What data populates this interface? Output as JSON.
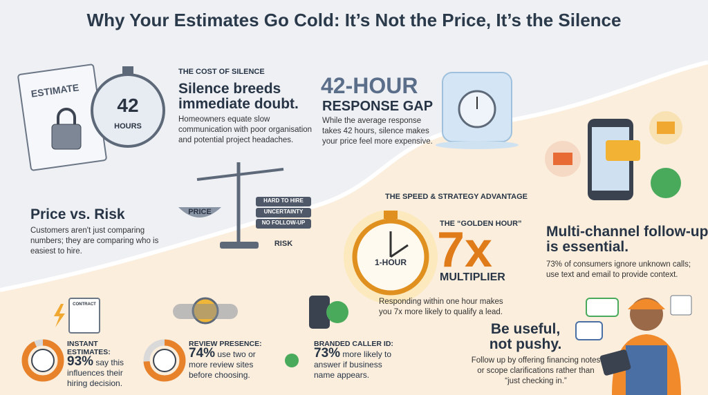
{
  "title": "Why Your Estimates Go Cold: It’s Not the Price, It’s the Silence",
  "illustrations": {
    "estimate_doc": "ESTIMATE",
    "timer_number": "42",
    "timer_unit": "HOURS",
    "scale_left": "PRICE",
    "risk_items": [
      "HARD TO HIRE",
      "UNCERTAINTY",
      "NO FOLLOW-UP"
    ],
    "scale_right": "RISK",
    "clock": "1-HOUR",
    "contract": "CONTRACT"
  },
  "cost_of_silence": {
    "kicker": "THE COST OF SILENCE",
    "headline": "Silence breeds immediate doubt.",
    "text": "Homeowners equate slow communication with poor organisation and potential project headaches."
  },
  "response_gap": {
    "big": "42-HOUR",
    "headline": "RESPONSE GAP",
    "text": "While the average response takes 42 hours, silence makes your price feel more expensive."
  },
  "price_vs_risk": {
    "headline": "Price vs. Risk",
    "text": "Customers aren't just comparing numbers; they are comparing who is easiest to hire."
  },
  "speed": {
    "kicker": "THE SPEED & STRATEGY ADVANTAGE",
    "golden": "THE “GOLDEN HOUR”",
    "big": "7x",
    "multiplier": "MULTIPLIER",
    "text": "Responding within one hour makes you 7x more likely to qualify a lead."
  },
  "multichannel": {
    "headline": "Multi-channel follow-up is essential.",
    "text": "73% of consumers ignore unknown calls; use text and email to provide context."
  },
  "stats": [
    {
      "heading": "INSTANT ESTIMATES:",
      "value": 93,
      "value_label": "93%",
      "text": "say this influences their hiring decision."
    },
    {
      "heading": "REVIEW PRESENCE:",
      "value": 74,
      "value_label": "74%",
      "text": "use two or more review sites before choosing."
    },
    {
      "heading": "BRANDED CALLER ID:",
      "value_label": "73%",
      "text": "more likely to answer if business name appears."
    }
  ],
  "useful": {
    "headline": "Be useful, not pushy.",
    "text": "Follow up by offering financing notes or scope clarifications rather than “just checking in.”"
  }
}
